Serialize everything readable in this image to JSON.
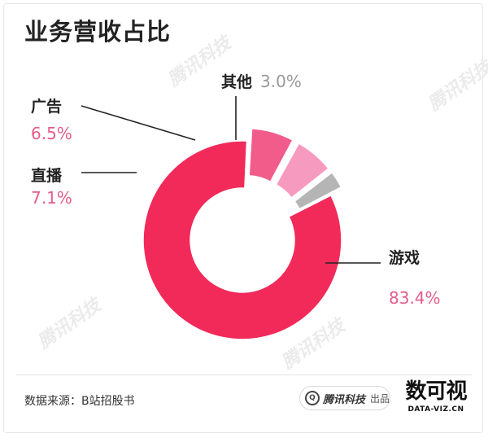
{
  "title": "业务营收占比",
  "watermark": "腾讯科技",
  "source": "数据来源：B站招股书",
  "badge": {
    "brand": "腾讯科技",
    "tag": "出品"
  },
  "logo": {
    "main": "数可视",
    "sub": "DATA-VIZ.CN"
  },
  "chart_data": {
    "type": "pie",
    "subtype": "donut",
    "title": "业务营收占比",
    "unit": "%",
    "slices": [
      {
        "label": "游戏",
        "value": 83.4,
        "value_text": "83.4%",
        "color": "#f22a5a",
        "exploded": false
      },
      {
        "label": "直播",
        "value": 7.1,
        "value_text": "7.1%",
        "color": "#f25c8b",
        "exploded": true
      },
      {
        "label": "广告",
        "value": 6.5,
        "value_text": "6.5%",
        "color": "#f79ac0",
        "exploded": true
      },
      {
        "label": "其他",
        "value": 3.0,
        "value_text": "3.0%",
        "color": "#b5b5b5",
        "exploded": true
      }
    ],
    "colors": {
      "label_pink": "#e45d8a",
      "label_gray": "#999999",
      "label_dark": "#222222"
    }
  }
}
